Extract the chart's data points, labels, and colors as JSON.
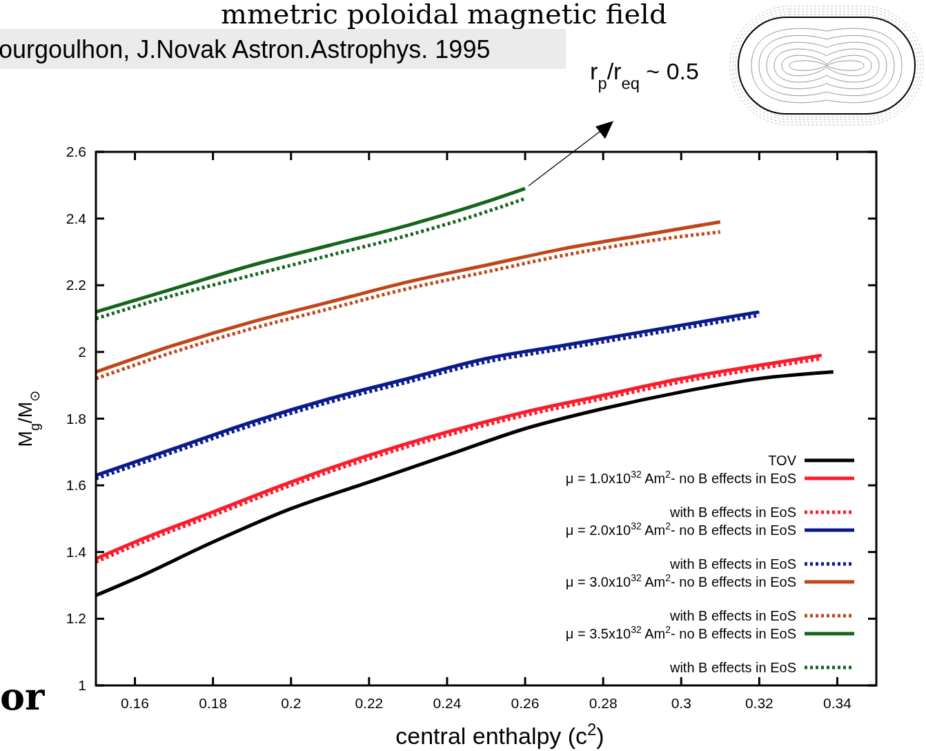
{
  "chart_data": {
    "type": "line",
    "title": "mmetric poloidal magnetic field",
    "xlabel": "central enthalpy (c$^{2}$)",
    "ylabel": "M$_{g}$/M$_{⊙}$",
    "xlim": [
      0.15,
      0.35
    ],
    "xticks": [
      0.16,
      0.18,
      0.2,
      0.22,
      0.24,
      0.26,
      0.28,
      0.3,
      0.32,
      0.34
    ],
    "ylim": [
      1,
      2.6
    ],
    "yticks": [
      1,
      1.2,
      1.4,
      1.6,
      1.8,
      2,
      2.2,
      2.4,
      2.6
    ],
    "grid": false,
    "legend": "bottom right",
    "line_style": "solid",
    "marker": "none",
    "annotations": [
      "ourgoulhon, J.Novak  Astron.Astrophys. 1995",
      "r$_{p}$/r$_{eq}$ ~ 0.5",
      "or"
    ],
    "series": [
      {
        "name": "TOV",
        "color": "#000000",
        "x": [
          0.15,
          0.16,
          0.18,
          0.2,
          0.22,
          0.24,
          0.26,
          0.28,
          0.3,
          0.32,
          0.339
        ],
        "values": [
          1.27,
          1.32,
          1.43,
          1.53,
          1.61,
          1.69,
          1.77,
          1.83,
          1.88,
          1.92,
          1.94
        ]
      },
      {
        "name": "μ = 1.0x10$^{32}$ Am$^{2}$-  no B effects in EoS",
        "color": "#ff1a2a",
        "x": [
          0.15,
          0.16,
          0.18,
          0.2,
          0.22,
          0.24,
          0.26,
          0.28,
          0.3,
          0.32,
          0.336
        ],
        "values": [
          1.38,
          1.43,
          1.52,
          1.61,
          1.69,
          1.76,
          1.82,
          1.87,
          1.92,
          1.96,
          1.99
        ]
      },
      {
        "name": "with B effects in EoS",
        "color": "#ff1a2a",
        "line_style": "dotted",
        "x": [
          0.15,
          0.16,
          0.18,
          0.2,
          0.22,
          0.24,
          0.26,
          0.28,
          0.3,
          0.32,
          0.336
        ],
        "values": [
          1.37,
          1.42,
          1.51,
          1.6,
          1.68,
          1.75,
          1.81,
          1.86,
          1.91,
          1.95,
          1.98
        ]
      },
      {
        "name": "μ = 2.0x10$^{32}$ Am$^{2}$-  no B effects in EoS",
        "color": "#0a1a8c",
        "x": [
          0.15,
          0.17,
          0.19,
          0.21,
          0.23,
          0.25,
          0.27,
          0.29,
          0.31,
          0.32
        ],
        "values": [
          1.63,
          1.71,
          1.79,
          1.86,
          1.92,
          1.98,
          2.02,
          2.06,
          2.1,
          2.12
        ]
      },
      {
        "name": "with B effects in EoS",
        "color": "#0a1a8c",
        "line_style": "dotted",
        "x": [
          0.15,
          0.17,
          0.19,
          0.21,
          0.23,
          0.25,
          0.27,
          0.29,
          0.31,
          0.32
        ],
        "values": [
          1.62,
          1.7,
          1.78,
          1.85,
          1.91,
          1.97,
          2.01,
          2.05,
          2.09,
          2.11
        ]
      },
      {
        "name": "μ = 3.0x10$^{32}$ Am$^{2}$-  no B effects in EoS",
        "color": "#c0461a",
        "x": [
          0.15,
          0.17,
          0.19,
          0.21,
          0.23,
          0.25,
          0.27,
          0.29,
          0.31
        ],
        "values": [
          1.94,
          2.02,
          2.09,
          2.15,
          2.21,
          2.26,
          2.31,
          2.35,
          2.39
        ]
      },
      {
        "name": "with B effects in EoS",
        "color": "#c0461a",
        "line_style": "dotted",
        "x": [
          0.15,
          0.17,
          0.19,
          0.21,
          0.23,
          0.25,
          0.27,
          0.29,
          0.31
        ],
        "values": [
          1.92,
          2.0,
          2.07,
          2.13,
          2.19,
          2.24,
          2.29,
          2.33,
          2.36
        ]
      },
      {
        "name": "μ = 3.5x10$^{32}$ Am$^{2}$-  no B effects in EoS",
        "color": "#13661c",
        "x": [
          0.15,
          0.17,
          0.19,
          0.21,
          0.23,
          0.25,
          0.26
        ],
        "values": [
          2.12,
          2.19,
          2.26,
          2.32,
          2.38,
          2.45,
          2.49
        ]
      },
      {
        "name": "with B effects in EoS",
        "color": "#13661c",
        "line_style": "dotted",
        "x": [
          0.15,
          0.17,
          0.19,
          0.21,
          0.23,
          0.25,
          0.26
        ],
        "values": [
          2.1,
          2.17,
          2.23,
          2.29,
          2.35,
          2.42,
          2.46
        ]
      }
    ]
  }
}
